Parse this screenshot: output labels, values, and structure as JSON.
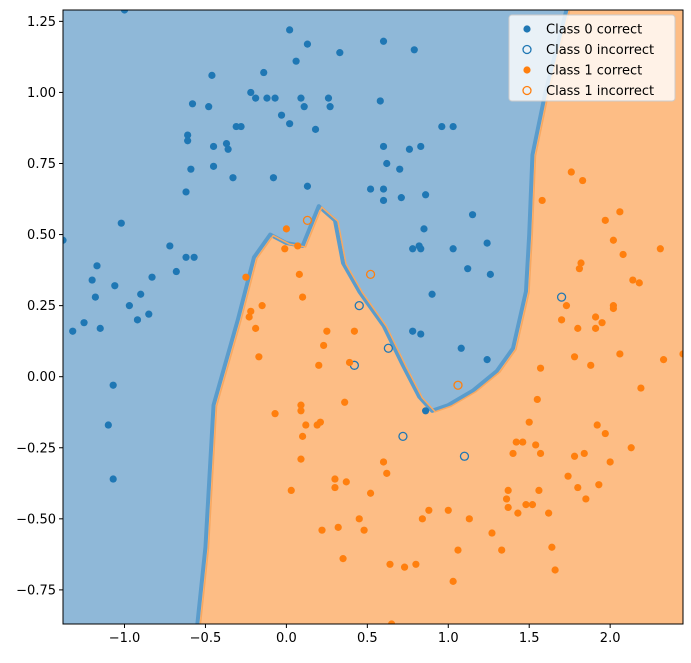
{
  "chart_data": {
    "type": "scatter",
    "title": "",
    "xlabel": "",
    "ylabel": "",
    "xlim": [
      -1.38,
      2.45
    ],
    "ylim": [
      -0.87,
      1.29
    ],
    "xticks": [
      -1.0,
      -0.5,
      0.0,
      0.5,
      1.0,
      1.5,
      2.0
    ],
    "xtick_labels": [
      "−1.0",
      "−0.5",
      "0.0",
      "0.5",
      "1.0",
      "1.5",
      "2.0"
    ],
    "yticks": [
      -0.75,
      -0.5,
      -0.25,
      0.0,
      0.25,
      0.5,
      0.75,
      1.0,
      1.25
    ],
    "ytick_labels": [
      "−0.75",
      "−0.50",
      "−0.25",
      "0.00",
      "0.25",
      "0.50",
      "0.75",
      "1.00",
      "1.25"
    ],
    "grid": false,
    "legend_position": "top-right",
    "colors": {
      "class0": "#1f77b4",
      "class1": "#ff7f0e",
      "region0": "#8fb8d8",
      "region1": "#fdbd85"
    },
    "decision_boundary": [
      [
        -0.55,
        -0.87
      ],
      [
        -0.5,
        -0.6
      ],
      [
        -0.45,
        -0.1
      ],
      [
        -0.3,
        0.2
      ],
      [
        -0.2,
        0.42
      ],
      [
        -0.1,
        0.5
      ],
      [
        0.0,
        0.47
      ],
      [
        0.1,
        0.46
      ],
      [
        0.2,
        0.6
      ],
      [
        0.3,
        0.55
      ],
      [
        0.35,
        0.4
      ],
      [
        0.45,
        0.3
      ],
      [
        0.6,
        0.18
      ],
      [
        0.72,
        0.04
      ],
      [
        0.82,
        -0.07
      ],
      [
        0.9,
        -0.12
      ],
      [
        1.0,
        -0.1
      ],
      [
        1.15,
        -0.05
      ],
      [
        1.3,
        0.02
      ],
      [
        1.4,
        0.1
      ],
      [
        1.48,
        0.3
      ],
      [
        1.5,
        0.5
      ],
      [
        1.52,
        0.78
      ],
      [
        1.6,
        1.0
      ],
      [
        1.73,
        1.29
      ]
    ],
    "series": [
      {
        "name": "Class 0 correct",
        "marker": "filled",
        "color": "#1f77b4",
        "points": [
          [
            -1.0,
            1.29
          ],
          [
            0.02,
            1.22
          ],
          [
            -1.38,
            0.48
          ],
          [
            -1.32,
            0.16
          ],
          [
            -1.25,
            0.19
          ],
          [
            -1.2,
            0.34
          ],
          [
            -1.17,
            0.39
          ],
          [
            -1.18,
            0.28
          ],
          [
            -1.15,
            0.17
          ],
          [
            -1.1,
            -0.17
          ],
          [
            -1.07,
            -0.03
          ],
          [
            -1.07,
            -0.36
          ],
          [
            -1.06,
            0.32
          ],
          [
            -1.02,
            0.54
          ],
          [
            -0.97,
            0.25
          ],
          [
            -0.92,
            0.2
          ],
          [
            -0.9,
            0.29
          ],
          [
            -0.85,
            0.22
          ],
          [
            -0.83,
            0.35
          ],
          [
            -0.72,
            0.46
          ],
          [
            -0.68,
            0.37
          ],
          [
            -0.62,
            0.42
          ],
          [
            -0.62,
            0.65
          ],
          [
            -0.61,
            0.85
          ],
          [
            -0.61,
            0.83
          ],
          [
            -0.59,
            0.73
          ],
          [
            -0.58,
            0.96
          ],
          [
            -0.57,
            0.42
          ],
          [
            -0.48,
            0.95
          ],
          [
            -0.46,
            1.06
          ],
          [
            -0.45,
            0.81
          ],
          [
            -0.45,
            0.74
          ],
          [
            -0.37,
            0.82
          ],
          [
            -0.36,
            0.8
          ],
          [
            -0.33,
            0.7
          ],
          [
            -0.31,
            0.88
          ],
          [
            -0.28,
            0.88
          ],
          [
            -0.22,
            1.0
          ],
          [
            -0.19,
            0.98
          ],
          [
            -0.14,
            1.07
          ],
          [
            -0.12,
            0.98
          ],
          [
            -0.08,
            0.7
          ],
          [
            -0.07,
            0.98
          ],
          [
            -0.03,
            0.92
          ],
          [
            0.02,
            0.89
          ],
          [
            0.06,
            1.11
          ],
          [
            0.09,
            0.98
          ],
          [
            0.11,
            0.95
          ],
          [
            0.13,
            1.17
          ],
          [
            0.13,
            0.67
          ],
          [
            0.18,
            0.87
          ],
          [
            0.26,
            0.98
          ],
          [
            0.27,
            0.95
          ],
          [
            0.33,
            1.14
          ],
          [
            0.58,
            0.97
          ],
          [
            0.6,
            0.66
          ],
          [
            0.6,
            0.62
          ],
          [
            0.6,
            0.81
          ],
          [
            0.6,
            1.18
          ],
          [
            0.62,
            0.75
          ],
          [
            0.7,
            0.73
          ],
          [
            0.71,
            0.63
          ],
          [
            0.76,
            0.8
          ],
          [
            0.79,
            1.15
          ],
          [
            0.83,
            0.81
          ],
          [
            0.78,
            0.45
          ],
          [
            0.82,
            0.46
          ],
          [
            0.83,
            0.45
          ],
          [
            0.85,
            0.52
          ],
          [
            0.86,
            0.64
          ],
          [
            0.9,
            0.29
          ],
          [
            0.96,
            0.88
          ],
          [
            1.03,
            0.88
          ],
          [
            1.03,
            0.45
          ],
          [
            1.08,
            0.1
          ],
          [
            1.12,
            0.38
          ],
          [
            1.15,
            0.57
          ],
          [
            1.24,
            0.47
          ],
          [
            1.26,
            0.36
          ],
          [
            0.52,
            0.66
          ],
          [
            1.24,
            0.06
          ],
          [
            0.78,
            0.16
          ],
          [
            0.83,
            0.15
          ],
          [
            0.86,
            -0.12
          ]
        ]
      },
      {
        "name": "Class 0 incorrect",
        "marker": "hollow",
        "color": "#1f77b4",
        "points": [
          [
            0.45,
            0.25
          ],
          [
            0.42,
            0.04
          ],
          [
            0.63,
            0.1
          ],
          [
            1.7,
            0.28
          ],
          [
            0.72,
            -0.21
          ],
          [
            1.1,
            -0.28
          ]
        ]
      },
      {
        "name": "Class 1 correct",
        "marker": "filled",
        "color": "#ff7f0e",
        "points": [
          [
            -0.25,
            0.35
          ],
          [
            -0.23,
            0.21
          ],
          [
            -0.22,
            0.23
          ],
          [
            -0.15,
            0.25
          ],
          [
            -0.19,
            0.17
          ],
          [
            -0.17,
            0.07
          ],
          [
            -0.07,
            -0.13
          ],
          [
            -0.01,
            0.45
          ],
          [
            0.0,
            0.52
          ],
          [
            0.07,
            0.46
          ],
          [
            0.08,
            0.36
          ],
          [
            0.1,
            0.28
          ],
          [
            0.03,
            -0.4
          ],
          [
            0.09,
            -0.1
          ],
          [
            0.09,
            -0.12
          ],
          [
            0.1,
            -0.21
          ],
          [
            0.09,
            -0.29
          ],
          [
            0.12,
            -0.17
          ],
          [
            0.19,
            -0.17
          ],
          [
            0.2,
            0.04
          ],
          [
            0.21,
            -0.16
          ],
          [
            0.23,
            0.11
          ],
          [
            0.25,
            0.16
          ],
          [
            0.22,
            -0.54
          ],
          [
            0.3,
            -0.36
          ],
          [
            0.3,
            -0.39
          ],
          [
            0.32,
            -0.53
          ],
          [
            0.35,
            -0.64
          ],
          [
            0.36,
            -0.09
          ],
          [
            0.37,
            -0.37
          ],
          [
            0.39,
            0.05
          ],
          [
            0.42,
            0.16
          ],
          [
            0.45,
            -0.5
          ],
          [
            0.48,
            -0.54
          ],
          [
            0.52,
            -0.41
          ],
          [
            0.6,
            -0.3
          ],
          [
            0.62,
            -0.34
          ],
          [
            0.64,
            -0.66
          ],
          [
            0.65,
            -0.87
          ],
          [
            0.73,
            -0.67
          ],
          [
            0.8,
            -0.66
          ],
          [
            0.84,
            -0.5
          ],
          [
            0.88,
            -0.47
          ],
          [
            1.0,
            -0.47
          ],
          [
            1.03,
            -0.72
          ],
          [
            1.06,
            -0.61
          ],
          [
            1.13,
            -0.5
          ],
          [
            1.27,
            -0.55
          ],
          [
            1.33,
            -0.61
          ],
          [
            1.36,
            -0.43
          ],
          [
            1.37,
            -0.4
          ],
          [
            1.37,
            -0.46
          ],
          [
            1.4,
            -0.27
          ],
          [
            1.42,
            -0.23
          ],
          [
            1.43,
            -0.48
          ],
          [
            1.46,
            -0.23
          ],
          [
            1.48,
            -0.45
          ],
          [
            1.5,
            -0.16
          ],
          [
            1.52,
            -0.45
          ],
          [
            1.54,
            -0.24
          ],
          [
            1.55,
            -0.08
          ],
          [
            1.56,
            -0.4
          ],
          [
            1.57,
            -0.27
          ],
          [
            1.57,
            0.03
          ],
          [
            1.58,
            0.62
          ],
          [
            1.62,
            -0.48
          ],
          [
            1.64,
            -0.6
          ],
          [
            1.66,
            -0.68
          ],
          [
            1.7,
            0.2
          ],
          [
            1.73,
            0.25
          ],
          [
            1.74,
            -0.35
          ],
          [
            1.76,
            0.72
          ],
          [
            1.78,
            0.07
          ],
          [
            1.78,
            -0.28
          ],
          [
            1.8,
            0.17
          ],
          [
            1.8,
            -0.39
          ],
          [
            1.81,
            0.38
          ],
          [
            1.82,
            0.4
          ],
          [
            1.83,
            0.69
          ],
          [
            1.84,
            -0.27
          ],
          [
            1.85,
            -0.43
          ],
          [
            1.91,
            0.21
          ],
          [
            1.91,
            0.17
          ],
          [
            1.92,
            -0.17
          ],
          [
            1.93,
            -0.38
          ],
          [
            1.95,
            0.19
          ],
          [
            1.97,
            0.55
          ],
          [
            2.0,
            -0.3
          ],
          [
            2.02,
            0.25
          ],
          [
            2.02,
            0.24
          ],
          [
            2.02,
            0.48
          ],
          [
            2.06,
            0.58
          ],
          [
            2.06,
            0.08
          ],
          [
            2.08,
            0.43
          ],
          [
            2.13,
            -0.25
          ],
          [
            2.14,
            0.34
          ],
          [
            2.18,
            0.33
          ],
          [
            2.19,
            -0.04
          ],
          [
            2.31,
            0.45
          ],
          [
            2.33,
            0.06
          ],
          [
            2.45,
            0.08
          ],
          [
            1.88,
            0.04
          ],
          [
            1.97,
            -0.2
          ]
        ]
      },
      {
        "name": "Class 1 incorrect",
        "marker": "hollow",
        "color": "#ff7f0e",
        "points": [
          [
            0.13,
            0.55
          ],
          [
            0.52,
            0.36
          ],
          [
            1.06,
            -0.03
          ]
        ]
      }
    ]
  }
}
